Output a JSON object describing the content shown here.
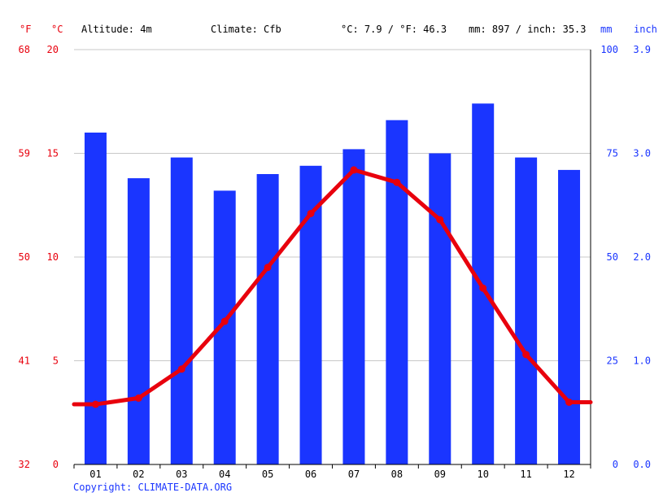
{
  "header": {
    "left_unit_f": "°F",
    "left_unit_c": "°C",
    "altitude": "Altitude: 4m",
    "climate": "Climate: Cfb",
    "temp_summary": "°C: 7.9 / °F: 46.3",
    "precip_summary": "mm: 897 / inch: 35.3",
    "right_unit_mm": "mm",
    "right_unit_inch": "inch"
  },
  "footer": {
    "copyright": "Copyright: CLIMATE-DATA.ORG"
  },
  "colors": {
    "precip": "#1a35ff",
    "temp": "#e8000d",
    "grid": "#c8c8c8",
    "axis": "#000000"
  },
  "chart_data": {
    "type": "bar",
    "categories": [
      "01",
      "02",
      "03",
      "04",
      "05",
      "06",
      "07",
      "08",
      "09",
      "10",
      "11",
      "12"
    ],
    "series": [
      {
        "kind": "bar",
        "axis": "mm",
        "values": [
          80,
          69,
          74,
          66,
          70,
          72,
          76,
          83,
          75,
          87,
          74,
          71
        ]
      },
      {
        "kind": "line",
        "axis": "celsius",
        "values": [
          2.9,
          3.2,
          4.6,
          6.9,
          9.5,
          12.1,
          14.2,
          13.6,
          11.8,
          8.5,
          5.3,
          3.0
        ]
      }
    ],
    "axes": {
      "celsius": {
        "range": [
          0,
          20
        ],
        "ticks": [
          0,
          5,
          10,
          15,
          20
        ]
      },
      "fahrenheit": {
        "range": [
          32,
          68
        ],
        "ticks": [
          "32",
          "41",
          "50",
          "59",
          "68"
        ]
      },
      "mm": {
        "range": [
          0,
          100
        ],
        "ticks": [
          0,
          25,
          50,
          75,
          100
        ]
      },
      "inch": {
        "range": [
          0,
          3.9
        ],
        "ticks": [
          "0.0",
          "1.0",
          "2.0",
          "3.0",
          "3.9"
        ]
      }
    },
    "grid": true
  }
}
